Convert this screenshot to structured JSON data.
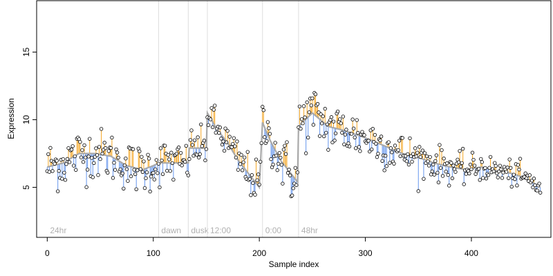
{
  "chart_data": {
    "type": "scatter",
    "title": "",
    "xlabel": "Sample index",
    "ylabel": "Expression",
    "xlim": [
      -10,
      475
    ],
    "ylim": [
      1.3,
      18.8
    ],
    "x_ticks": [
      0,
      100,
      200,
      300,
      400
    ],
    "y_ticks": [
      5,
      10,
      15
    ],
    "grid": false,
    "legend": "none",
    "colors": {
      "above_trend": "#f5a623",
      "below_trend": "#6495ed",
      "trend": "#a9a9a9",
      "points": "#000000",
      "phase_lines": "#dddddd",
      "phase_text": "#b0b0b0"
    },
    "phases": [
      {
        "x": 0,
        "label": "24hr",
        "line": false
      },
      {
        "x": 105,
        "label": "dawn",
        "line": true
      },
      {
        "x": 133,
        "label": "dusk",
        "line": true
      },
      {
        "x": 151,
        "label": "12:00",
        "line": true
      },
      {
        "x": 203,
        "label": "0:00",
        "line": true
      },
      {
        "x": 237,
        "label": "48hr",
        "line": true
      }
    ],
    "trend": [
      [
        0,
        6.5
      ],
      [
        15,
        6.8
      ],
      [
        30,
        7.5
      ],
      [
        45,
        7.5
      ],
      [
        60,
        7.3
      ],
      [
        75,
        6.6
      ],
      [
        90,
        6.3
      ],
      [
        100,
        6.6
      ],
      [
        105,
        6.8
      ],
      [
        120,
        6.8
      ],
      [
        133,
        6.8
      ],
      [
        134,
        7.9
      ],
      [
        150,
        7.9
      ],
      [
        151,
        10.5
      ],
      [
        160,
        9.3
      ],
      [
        170,
        8.3
      ],
      [
        180,
        7.0
      ],
      [
        190,
        6.0
      ],
      [
        200,
        5.0
      ],
      [
        203,
        9.8
      ],
      [
        210,
        8.5
      ],
      [
        220,
        7.0
      ],
      [
        230,
        6.0
      ],
      [
        236,
        5.4
      ],
      [
        237,
        9.5
      ],
      [
        250,
        10.5
      ],
      [
        265,
        9.5
      ],
      [
        280,
        9.2
      ],
      [
        295,
        8.8
      ],
      [
        305,
        8.5
      ],
      [
        320,
        8.0
      ],
      [
        335,
        7.5
      ],
      [
        350,
        7.2
      ],
      [
        365,
        6.8
      ],
      [
        380,
        6.5
      ],
      [
        395,
        6.3
      ],
      [
        410,
        6.5
      ],
      [
        425,
        6.2
      ],
      [
        440,
        6.0
      ],
      [
        455,
        5.5
      ],
      [
        465,
        5.0
      ]
    ],
    "noise_amplitude": [
      [
        0,
        1.3
      ],
      [
        100,
        1.2
      ],
      [
        134,
        1.0
      ],
      [
        151,
        0.9
      ],
      [
        203,
        1.1
      ],
      [
        237,
        1.5
      ],
      [
        320,
        1.1
      ],
      [
        400,
        0.7
      ],
      [
        465,
        0.6
      ]
    ],
    "n_points": 466
  }
}
